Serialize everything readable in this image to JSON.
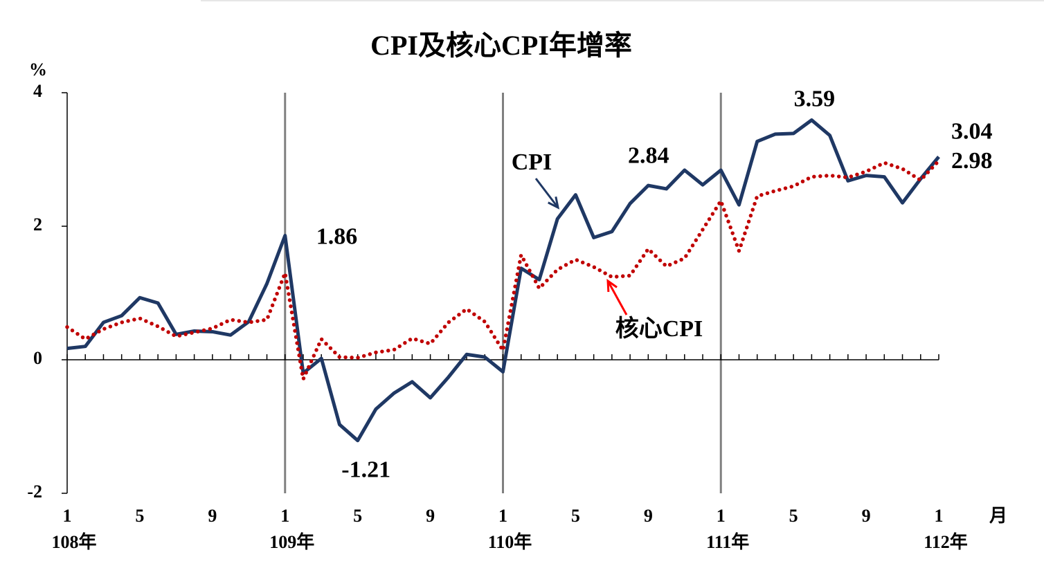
{
  "chart_data": {
    "type": "line",
    "title": "CPI及核心CPI年增率",
    "y_unit": "%",
    "x_unit": "月",
    "categories": [
      "1",
      null,
      null,
      null,
      "5",
      null,
      null,
      null,
      "9",
      null,
      null,
      null,
      "1",
      null,
      null,
      null,
      "5",
      null,
      null,
      null,
      "9",
      null,
      null,
      null,
      "1",
      null,
      null,
      null,
      "5",
      null,
      null,
      null,
      "9",
      null,
      null,
      null,
      "1",
      null,
      null,
      null,
      "5",
      null,
      null,
      null,
      "9",
      null,
      null,
      null,
      "1"
    ],
    "year_labels": [
      "108年",
      "109年",
      "110年",
      "111年",
      "112年"
    ],
    "series": [
      {
        "name": "CPI",
        "color": "#1f3864",
        "values": [
          0.17,
          0.2,
          0.56,
          0.66,
          0.93,
          0.85,
          0.38,
          0.43,
          0.42,
          0.37,
          0.57,
          1.14,
          1.86,
          -0.2,
          0.02,
          -0.97,
          -1.21,
          -0.74,
          -0.5,
          -0.33,
          -0.57,
          -0.26,
          0.08,
          0.04,
          -0.18,
          1.37,
          1.2,
          2.11,
          2.47,
          1.83,
          1.92,
          2.34,
          2.61,
          2.56,
          2.84,
          2.62,
          2.84,
          2.32,
          3.27,
          3.38,
          3.39,
          3.59,
          3.36,
          2.68,
          2.76,
          2.74,
          2.35,
          2.71,
          3.04
        ],
        "value_labels": [
          null,
          null,
          null,
          null,
          null,
          null,
          null,
          null,
          null,
          null,
          null,
          null,
          "1.86",
          null,
          null,
          null,
          "-1.21",
          null,
          null,
          null,
          null,
          null,
          null,
          null,
          null,
          null,
          null,
          null,
          null,
          null,
          null,
          null,
          null,
          null,
          "2.84",
          null,
          null,
          null,
          null,
          null,
          null,
          "3.59",
          null,
          null,
          null,
          null,
          null,
          null,
          "3.04"
        ]
      },
      {
        "name": "核心CPI",
        "color": "#c00000",
        "values": [
          0.49,
          0.31,
          0.46,
          0.56,
          0.62,
          0.5,
          0.35,
          0.41,
          0.47,
          0.6,
          0.56,
          0.6,
          1.3,
          -0.29,
          0.31,
          0.04,
          0.03,
          0.11,
          0.15,
          0.32,
          0.24,
          0.56,
          0.76,
          0.57,
          0.14,
          1.57,
          1.07,
          1.35,
          1.5,
          1.39,
          1.24,
          1.26,
          1.66,
          1.4,
          1.52,
          1.95,
          2.38,
          1.63,
          2.45,
          2.53,
          2.6,
          2.74,
          2.76,
          2.73,
          2.82,
          2.95,
          2.86,
          2.69,
          2.98
        ],
        "value_labels": [
          null,
          null,
          null,
          null,
          null,
          null,
          null,
          null,
          null,
          null,
          null,
          null,
          null,
          null,
          null,
          null,
          null,
          null,
          null,
          null,
          null,
          null,
          null,
          null,
          null,
          null,
          null,
          null,
          null,
          null,
          null,
          null,
          null,
          null,
          null,
          null,
          null,
          null,
          null,
          null,
          null,
          null,
          null,
          null,
          null,
          null,
          null,
          null,
          "2.98"
        ]
      }
    ],
    "ylim": [
      -2,
      4
    ],
    "yticks": [
      -2,
      0,
      2,
      4
    ]
  }
}
